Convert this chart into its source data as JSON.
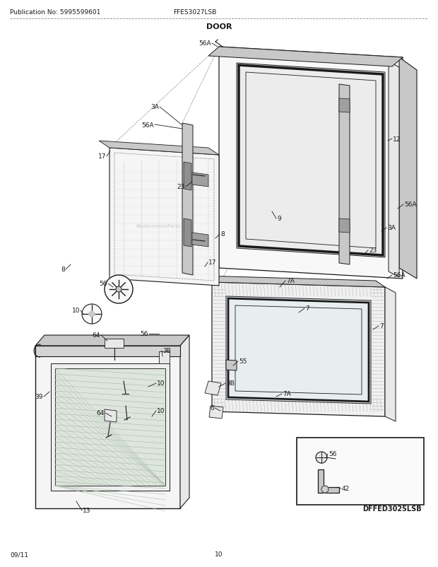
{
  "title": "DOOR",
  "pub_no": "Publication No: 5995599601",
  "model": "FFES3027LSB",
  "diagram_id": "DFFED3025LSB",
  "date": "09/11",
  "page": "10",
  "bg_color": "#ffffff",
  "line_color": "#1a1a1a",
  "text_color": "#1a1a1a",
  "watermark": "ReplacementParts.com",
  "gray_light": "#e8e8e8",
  "gray_mid": "#c8c8c8",
  "gray_dark": "#a0a0a0",
  "gray_fill": "#f2f2f2"
}
